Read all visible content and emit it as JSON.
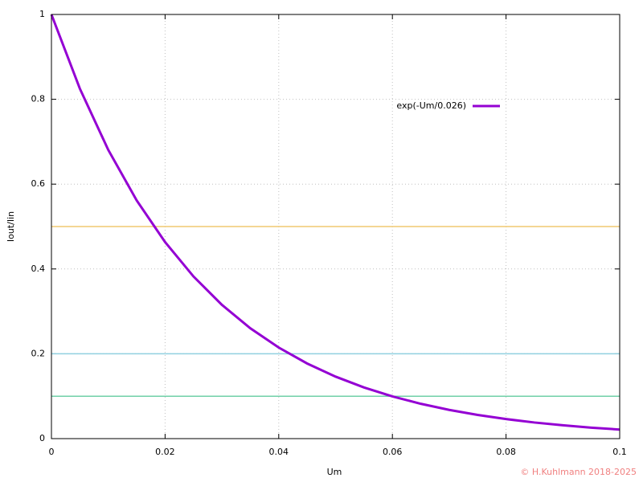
{
  "chart_data": {
    "type": "line",
    "xlabel": "Um",
    "ylabel": "Iout/Iin",
    "credit": "© H.Kuhlmann 2018-2025",
    "xlim": [
      0,
      0.1
    ],
    "ylim": [
      0,
      1
    ],
    "xticks": [
      0,
      0.02,
      0.04,
      0.06,
      0.08,
      0.1
    ],
    "yticks": [
      0,
      0.2,
      0.4,
      0.6,
      0.8,
      1
    ],
    "grid": true,
    "legend": "upper right",
    "series": [
      {
        "name": "exp(-Um/0.026)",
        "color": "#9400d3",
        "x": [
          0,
          0.005,
          0.01,
          0.015,
          0.02,
          0.025,
          0.03,
          0.035,
          0.04,
          0.045,
          0.05,
          0.055,
          0.06,
          0.065,
          0.07,
          0.075,
          0.08,
          0.085,
          0.09,
          0.095,
          0.1
        ],
        "values": [
          1,
          0.8251,
          0.6807,
          0.5616,
          0.4634,
          0.3823,
          0.3154,
          0.2602,
          0.2147,
          0.1771,
          0.1462,
          0.1206,
          0.0995,
          0.0821,
          0.0677,
          0.0559,
          0.0461,
          0.038,
          0.0314,
          0.0259,
          0.0214
        ]
      },
      {
        "color": "#f0c870",
        "x": [
          0,
          0.1
        ],
        "values": [
          0.5,
          0.5
        ]
      },
      {
        "color": "#90d0e0",
        "x": [
          0,
          0.1
        ],
        "values": [
          0.2,
          0.2
        ]
      },
      {
        "color": "#70d0a8",
        "x": [
          0,
          0.1
        ],
        "values": [
          0.1,
          0.1
        ]
      }
    ]
  }
}
